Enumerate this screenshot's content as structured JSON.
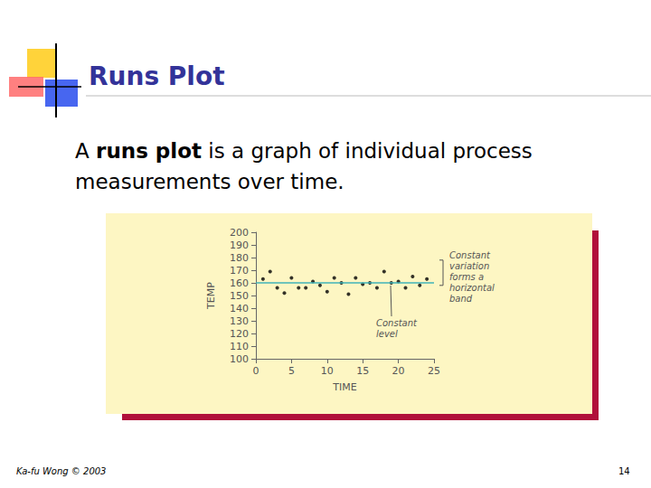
{
  "slide": {
    "title": "Runs Plot",
    "body": [
      {
        "text": "A "
      },
      {
        "text": "runs plot",
        "bold": true
      },
      {
        "text": " is a graph of individual process measurements over time."
      }
    ],
    "footer": "Ka-fu Wong © 2003",
    "page": "14"
  },
  "chart_data": {
    "type": "scatter",
    "x_label": "TIME",
    "y_label": "TEMP",
    "x": [
      1,
      2,
      3,
      4,
      5,
      6,
      7,
      8,
      9,
      10,
      11,
      12,
      13,
      14,
      15,
      16,
      17,
      18,
      19,
      20,
      21,
      22,
      23,
      24
    ],
    "values": [
      163,
      169,
      156,
      152,
      164,
      156,
      156,
      161,
      158,
      153,
      164,
      160,
      151,
      164,
      159,
      160,
      156,
      169,
      160,
      161,
      156,
      165,
      158,
      163
    ],
    "color": "#000000",
    "marker": "circle",
    "level_line": 160,
    "level_color": "#3fb3b8",
    "band": [
      158,
      178
    ],
    "annotations": [
      {
        "lines": [
          "Constant",
          "variation",
          "forms a",
          "horizontal",
          "band"
        ]
      },
      {
        "lines": [
          "Constant",
          "level"
        ]
      }
    ],
    "xlim": [
      0,
      25
    ],
    "xticks": [
      0,
      5,
      10,
      15,
      20,
      25
    ],
    "ylim": [
      100,
      200
    ],
    "yticks": [
      100,
      110,
      120,
      130,
      140,
      150,
      160,
      170,
      180,
      190,
      200
    ],
    "grid": false
  }
}
